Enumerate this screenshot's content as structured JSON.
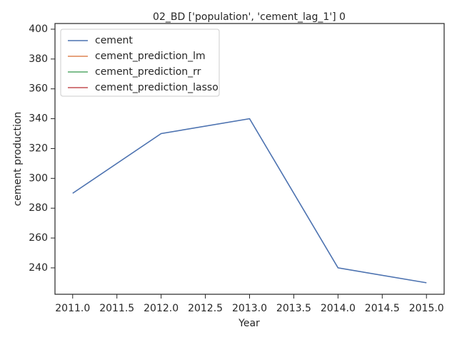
{
  "chart_data": {
    "type": "line",
    "title": "02_BD ['population', 'cement_lag_1'] 0",
    "xlabel": "Year",
    "ylabel": "cement production",
    "x": [
      2011,
      2012,
      2013,
      2014,
      2015
    ],
    "series": [
      {
        "name": "cement",
        "color": "#4c72b0",
        "values": [
          290,
          330,
          340,
          240,
          230
        ]
      },
      {
        "name": "cement_prediction_lm",
        "color": "#dd8452",
        "values": [
          null,
          null,
          null,
          null,
          null
        ]
      },
      {
        "name": "cement_prediction_rr",
        "color": "#55a868",
        "values": [
          null,
          null,
          null,
          null,
          null
        ]
      },
      {
        "name": "cement_prediction_lasso",
        "color": "#c44e52",
        "values": [
          null,
          null,
          null,
          null,
          null
        ]
      }
    ],
    "xlim": [
      2010.8,
      2015.2
    ],
    "xticks": [
      {
        "value": 2011,
        "label": "2011.0"
      },
      {
        "value": 2011.5,
        "label": "2011.5"
      },
      {
        "value": 2012,
        "label": "2012.0"
      },
      {
        "value": 2012.5,
        "label": "2012.5"
      },
      {
        "value": 2013,
        "label": "2013.0"
      },
      {
        "value": 2013.5,
        "label": "2013.5"
      },
      {
        "value": 2014,
        "label": "2014.0"
      },
      {
        "value": 2014.5,
        "label": "2014.5"
      },
      {
        "value": 2015,
        "label": "2015.0"
      }
    ],
    "ylim": [
      222.3,
      403.8
    ],
    "yticks": [
      240,
      260,
      280,
      300,
      320,
      340,
      360,
      380,
      400
    ],
    "legend": "upper left"
  }
}
